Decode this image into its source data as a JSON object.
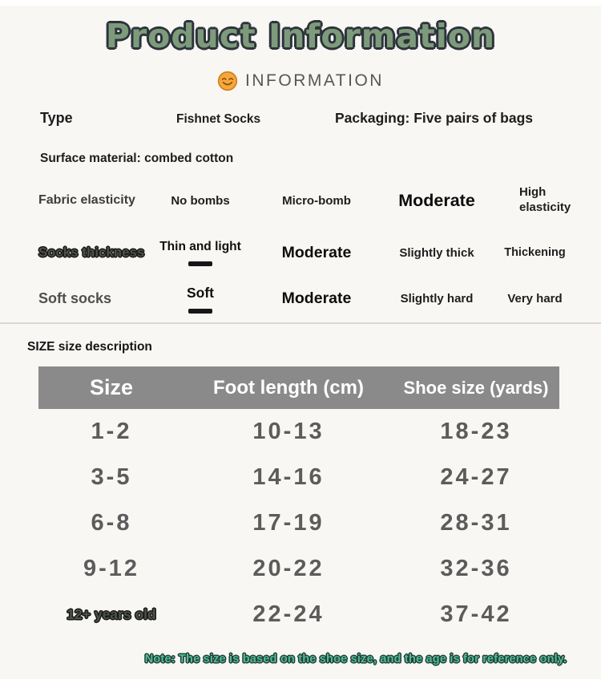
{
  "header": {
    "title": "Product Information",
    "subtitle": "INFORMATION",
    "emoji": "smiley-face"
  },
  "specs": {
    "type_label": "Type",
    "type_value": "Fishnet Socks",
    "packaging": "Packaging: Five pairs of bags",
    "surface_material": "Surface material: combed cotton",
    "rows": [
      {
        "id": "fabric-elasticity",
        "label": "Fabric elasticity",
        "label_style": "plain",
        "options": [
          {
            "text": "No bombs",
            "emphasis": "none"
          },
          {
            "text": "Micro-bomb",
            "emphasis": "none"
          },
          {
            "text": "Moderate",
            "emphasis": "large"
          },
          {
            "text": "High elasticity",
            "emphasis": "none"
          }
        ]
      },
      {
        "id": "socks-thickness",
        "label": "Socks thickness",
        "label_style": "outlined",
        "options": [
          {
            "text": "Thin and light",
            "emphasis": "underline"
          },
          {
            "text": "Moderate",
            "emphasis": "large"
          },
          {
            "text": "Slightly thick",
            "emphasis": "none"
          },
          {
            "text": "Thickening",
            "emphasis": "none"
          }
        ]
      },
      {
        "id": "soft-socks",
        "label": "Soft socks",
        "label_style": "big",
        "options": [
          {
            "text": "Soft",
            "emphasis": "underline"
          },
          {
            "text": "Moderate",
            "emphasis": "large"
          },
          {
            "text": "Slightly hard",
            "emphasis": "none"
          },
          {
            "text": "Very hard",
            "emphasis": "none"
          }
        ]
      }
    ]
  },
  "size_table": {
    "section_title": "SIZE size description",
    "headers": [
      "Size",
      "Foot length (cm)",
      "Shoe size (yards)"
    ],
    "rows": [
      [
        "1-2",
        "10-13",
        "18-23"
      ],
      [
        "3-5",
        "14-16",
        "24-27"
      ],
      [
        "6-8",
        "17-19",
        "28-31"
      ],
      [
        "9-12",
        "20-22",
        "32-36"
      ],
      [
        "12+ years old",
        "22-24",
        "37-42"
      ]
    ]
  },
  "footer": {
    "note": "Note: The size is based on the shoe size, and the age is for reference only."
  },
  "colors": {
    "background": "#f8f7f4",
    "title_fill": "#7d9b7a",
    "title_outline": "#2d333c",
    "note_fill": "#55bb92",
    "note_outline": "#20403a",
    "table_header_bg": "#8a8a8a",
    "table_header_text": "#ffffff",
    "table_value_text": "#5c5c5c",
    "emoji_orange": "#f6a83c"
  }
}
